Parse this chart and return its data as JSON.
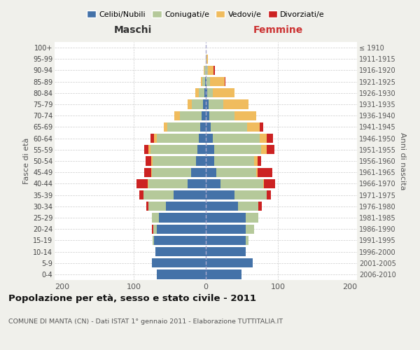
{
  "age_groups": [
    "0-4",
    "5-9",
    "10-14",
    "15-19",
    "20-24",
    "25-29",
    "30-34",
    "35-39",
    "40-44",
    "45-49",
    "50-54",
    "55-59",
    "60-64",
    "65-69",
    "70-74",
    "75-79",
    "80-84",
    "85-89",
    "90-94",
    "95-99",
    "100+"
  ],
  "birth_years": [
    "2006-2010",
    "2001-2005",
    "1996-2000",
    "1991-1995",
    "1986-1990",
    "1981-1985",
    "1976-1980",
    "1971-1975",
    "1966-1970",
    "1961-1965",
    "1956-1960",
    "1951-1955",
    "1946-1950",
    "1941-1945",
    "1936-1940",
    "1931-1935",
    "1926-1930",
    "1921-1925",
    "1916-1920",
    "1911-1915",
    "≤ 1910"
  ],
  "male": {
    "celibi": [
      68,
      75,
      70,
      72,
      68,
      65,
      55,
      45,
      25,
      20,
      14,
      12,
      10,
      8,
      6,
      4,
      2,
      1,
      0,
      0,
      0
    ],
    "coniugati": [
      0,
      0,
      0,
      2,
      5,
      10,
      25,
      42,
      55,
      55,
      60,
      65,
      58,
      45,
      30,
      15,
      8,
      4,
      2,
      0,
      0
    ],
    "vedovi": [
      0,
      0,
      0,
      0,
      0,
      0,
      0,
      0,
      1,
      1,
      2,
      3,
      4,
      5,
      8,
      6,
      5,
      2,
      1,
      0,
      0
    ],
    "divorziati": [
      0,
      0,
      0,
      0,
      2,
      0,
      3,
      5,
      15,
      10,
      8,
      6,
      5,
      0,
      0,
      0,
      0,
      0,
      0,
      0,
      0
    ]
  },
  "female": {
    "nubili": [
      50,
      65,
      55,
      55,
      55,
      55,
      45,
      40,
      20,
      15,
      12,
      12,
      10,
      7,
      5,
      4,
      2,
      1,
      0,
      0,
      0
    ],
    "coniugate": [
      0,
      0,
      0,
      4,
      12,
      18,
      28,
      45,
      60,
      55,
      55,
      65,
      65,
      50,
      35,
      20,
      8,
      5,
      3,
      1,
      0
    ],
    "vedove": [
      0,
      0,
      0,
      0,
      0,
      0,
      0,
      0,
      1,
      2,
      5,
      8,
      10,
      18,
      30,
      35,
      30,
      20,
      8,
      2,
      0
    ],
    "divorziate": [
      0,
      0,
      0,
      0,
      0,
      0,
      5,
      5,
      15,
      20,
      5,
      10,
      8,
      5,
      0,
      0,
      0,
      1,
      2,
      0,
      0
    ]
  },
  "colors": {
    "celibi": "#4472a8",
    "coniugati": "#b5c99a",
    "vedovi": "#f0bc5e",
    "divorziati": "#cc2222"
  },
  "xlim": 210,
  "title": "Popolazione per età, sesso e stato civile - 2011",
  "subtitle": "COMUNE DI MANTA (CN) - Dati ISTAT 1° gennaio 2011 - Elaborazione TUTTITALIA.IT",
  "ylabel_left": "Fasce di età",
  "ylabel_right": "Anni di nascita",
  "xlabel_left": "Maschi",
  "xlabel_right": "Femmine",
  "bg_color": "#f0f0eb",
  "plot_bg": "#ffffff"
}
